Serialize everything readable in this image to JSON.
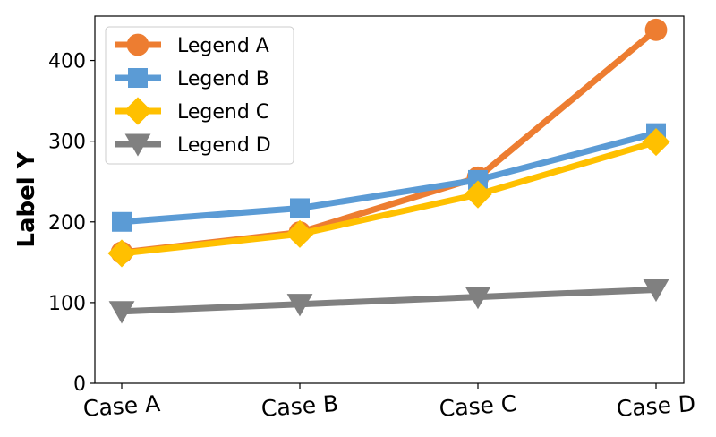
{
  "chart_data": {
    "type": "line",
    "title": "",
    "xlabel": "",
    "ylabel": "Label Y",
    "categories": [
      "Case A",
      "Case B",
      "Case C",
      "Case D"
    ],
    "ylim": [
      0,
      455
    ],
    "yticks": [
      0,
      100,
      200,
      300,
      400
    ],
    "grid": false,
    "legend_position": "top-left",
    "series": [
      {
        "name": "Legend A",
        "values": [
          162,
          187,
          255,
          438
        ],
        "color": "#ED7D31",
        "marker": "circle"
      },
      {
        "name": "Legend B",
        "values": [
          200,
          217,
          252,
          310
        ],
        "color": "#5B9BD5",
        "marker": "square"
      },
      {
        "name": "Legend C",
        "values": [
          161,
          185,
          234,
          299
        ],
        "color": "#FFC000",
        "marker": "diamond"
      },
      {
        "name": "Legend D",
        "values": [
          89,
          98,
          107,
          116
        ],
        "color": "#808080",
        "marker": "triangle-down"
      }
    ]
  }
}
